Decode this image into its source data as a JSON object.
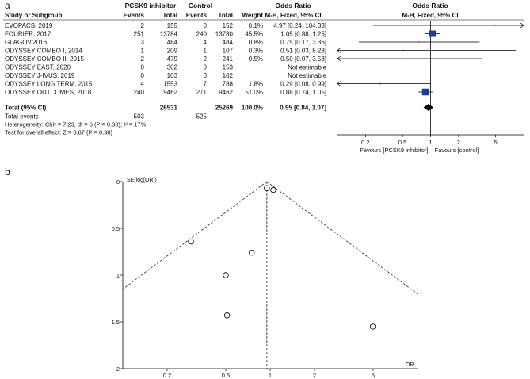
{
  "panel_a": {
    "label": "a",
    "group_exp": "PCSK9 inhibitor",
    "group_ctl": "Control",
    "or_head": "Odds Ratio",
    "or_head2": "Odds Ratio",
    "h_study": "Study or Subgroup",
    "h_e1": "Events",
    "h_t1": "Total",
    "h_e2": "Events",
    "h_t2": "Total",
    "h_w": "Weight",
    "h_ci": "M-H, Fixed, 95% CI",
    "h_ci2": "M-H, Fixed, 95% CI",
    "studies": [
      {
        "name": "EVOPACS, 2019",
        "e1": "2",
        "t1": "155",
        "e2": "0",
        "t2": "152",
        "w": "0.1%",
        "ci": "4.97 [0.24, 104.33]"
      },
      {
        "name": "FOURIER, 2017",
        "e1": "251",
        "t1": "13784",
        "e2": "240",
        "t2": "13780",
        "w": "45.5%",
        "ci": "1.05 [0.88, 1.25]"
      },
      {
        "name": "GLAGOV,2016",
        "e1": "3",
        "t1": "484",
        "e2": "4",
        "t2": "484",
        "w": "0.8%",
        "ci": "0.75 [0.17, 3.36]"
      },
      {
        "name": "ODYSSEY COMBO I, 2014",
        "e1": "1",
        "t1": "209",
        "e2": "1",
        "t2": "107",
        "w": "0.3%",
        "ci": "0.51 [0.03, 8.23]"
      },
      {
        "name": "ODYSSEY COMBO II, 2015",
        "e1": "2",
        "t1": "479",
        "e2": "2",
        "t2": "241",
        "w": "0.5%",
        "ci": "0.50 [0.07, 3.58]"
      },
      {
        "name": "ODYSSEY EAST, 2020",
        "e1": "0",
        "t1": "302",
        "e2": "0",
        "t2": "153",
        "w": "",
        "ci": "Not estimable"
      },
      {
        "name": "ODYSSEY J-IVUS, 2019",
        "e1": "0",
        "t1": "103",
        "e2": "0",
        "t2": "102",
        "w": "",
        "ci": "Not estimable"
      },
      {
        "name": "ODYSSEY LONG TERM, 2015",
        "e1": "4",
        "t1": "1553",
        "e2": "7",
        "t2": "788",
        "w": "1.8%",
        "ci": "0.29 [0.08, 0.99]"
      },
      {
        "name": "ODYSSEY OUTCOMES, 2018",
        "e1": "240",
        "t1": "9462",
        "e2": "271",
        "t2": "9462",
        "w": "51.0%",
        "ci": "0.88 [0.74, 1.05]"
      }
    ],
    "total": {
      "name": "Total (95% CI)",
      "t1": "26531",
      "t2": "25269",
      "w": "100.0%",
      "ci": "0.95 [0.84, 1.07]"
    },
    "events": {
      "name": "Total events",
      "e1": "503",
      "e2": "525"
    },
    "heterogeneity": "Heterogeneity: Chi² = 7.23, df = 6 (P = 0.30); I² = 17%",
    "overall": "Test for overall effect: Z = 0.87 (P = 0.38)",
    "ticks": [
      "0.2",
      "0.5",
      "1",
      "2",
      "5"
    ],
    "favours_left": "Favours [PCSK9 inhibitor]",
    "favours_right": "Favours [control]"
  },
  "panel_b": {
    "label": "b",
    "ylabel": "SE(log[OR])",
    "xlabel": "OR",
    "yticks": [
      "0",
      "0.5",
      "1",
      "1.5",
      "2"
    ],
    "xticks": [
      "0.2",
      "0.5",
      "1",
      "2",
      "5"
    ]
  },
  "chart_data": [
    {
      "type": "forest",
      "scale": "log",
      "xlim": [
        0.1,
        10
      ],
      "grid": false,
      "series": [
        {
          "study": "EVOPACS, 2019",
          "or": 4.97,
          "lo": 0.24,
          "hi": 104.33,
          "weight": 0.1
        },
        {
          "study": "FOURIER, 2017",
          "or": 1.05,
          "lo": 0.88,
          "hi": 1.25,
          "weight": 45.5
        },
        {
          "study": "GLAGOV,2016",
          "or": 0.75,
          "lo": 0.17,
          "hi": 3.36,
          "weight": 0.8
        },
        {
          "study": "ODYSSEY COMBO I, 2014",
          "or": 0.51,
          "lo": 0.03,
          "hi": 8.23,
          "weight": 0.3
        },
        {
          "study": "ODYSSEY COMBO II, 2015",
          "or": 0.5,
          "lo": 0.07,
          "hi": 3.58,
          "weight": 0.5
        },
        {
          "study": "ODYSSEY LONG TERM, 2015",
          "or": 0.29,
          "lo": 0.08,
          "hi": 0.99,
          "weight": 1.8
        },
        {
          "study": "ODYSSEY OUTCOMES, 2018",
          "or": 0.88,
          "lo": 0.74,
          "hi": 1.05,
          "weight": 51.0
        }
      ],
      "pooled": {
        "or": 0.95,
        "lo": 0.84,
        "hi": 1.07
      }
    },
    {
      "type": "scatter",
      "title": "",
      "xscale": "log",
      "xlim": [
        0.1,
        10
      ],
      "ylim": [
        0,
        2
      ],
      "y_reversed": true,
      "pooled_or": 0.95,
      "points": [
        {
          "or": 0.95,
          "se": 0.07
        },
        {
          "or": 1.05,
          "se": 0.09
        },
        {
          "or": 0.29,
          "se": 0.64
        },
        {
          "or": 0.75,
          "se": 0.76
        },
        {
          "or": 0.5,
          "se": 1.0
        },
        {
          "or": 0.51,
          "se": 1.43
        },
        {
          "or": 4.97,
          "se": 1.55
        }
      ]
    }
  ]
}
